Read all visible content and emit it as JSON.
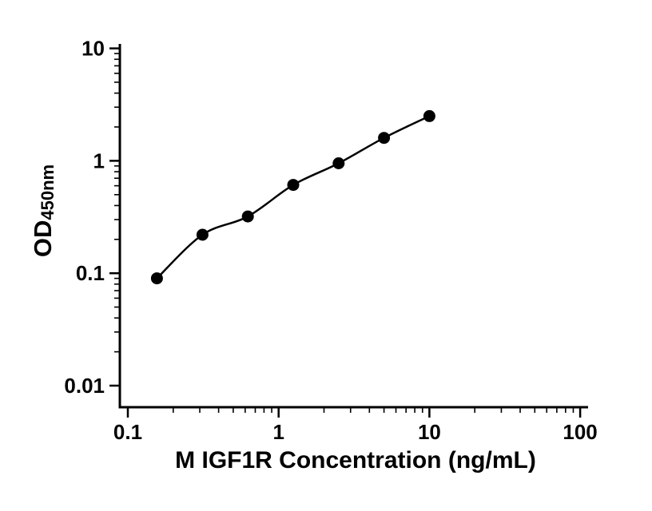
{
  "figure": {
    "background": "#ffffff"
  },
  "chart_data": {
    "type": "scatter",
    "subtype": "standard-curve-with-fit-line",
    "x_scale": "log",
    "y_scale": "log",
    "x": [
      0.156,
      0.3125,
      0.625,
      1.25,
      2.5,
      5,
      10
    ],
    "y": [
      0.09,
      0.22,
      0.32,
      0.61,
      0.95,
      1.6,
      2.5
    ],
    "xlabel": "M IGF1R Concentration (ng/mL)",
    "ylabel_main": "OD",
    "ylabel_sub": "450nm",
    "xlim": [
      0.1,
      100
    ],
    "ylim": [
      0.01,
      10
    ],
    "x_ticks": [
      0.1,
      1,
      10,
      100
    ],
    "x_tick_labels": [
      "0.1",
      "1",
      "10",
      "100"
    ],
    "y_ticks": [
      0.01,
      0.1,
      1,
      10
    ],
    "y_tick_labels": [
      "0.01",
      "0.1",
      "1",
      "10"
    ],
    "minor_ticks": "log-decades",
    "grid": false,
    "legend": false,
    "marker": {
      "shape": "circle",
      "color": "#000000",
      "radius": 7.5
    },
    "line_color": "#000000",
    "axis_color": "#000000"
  }
}
